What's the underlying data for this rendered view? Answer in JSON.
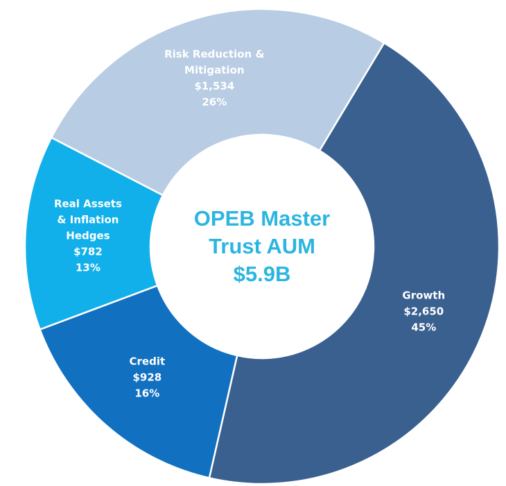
{
  "chart_data": {
    "type": "donut",
    "center_title": "OPEB Master Trust AUM",
    "center_value": "$5.9B",
    "categories": [
      "Growth",
      "Credit",
      "Real Assets & Inflation Hedges",
      "Risk Reduction & Mitigation"
    ],
    "values": [
      2650,
      928,
      782,
      1534
    ],
    "value_labels": [
      "$2,650",
      "$928",
      "$782",
      "$1,534"
    ],
    "percents": [
      45,
      16,
      13,
      26
    ],
    "percent_labels": [
      "45%",
      "16%",
      "13%",
      "26%"
    ],
    "colors": [
      "#3a6090",
      "#1170c0",
      "#12b0ea",
      "#b8cce4"
    ]
  }
}
